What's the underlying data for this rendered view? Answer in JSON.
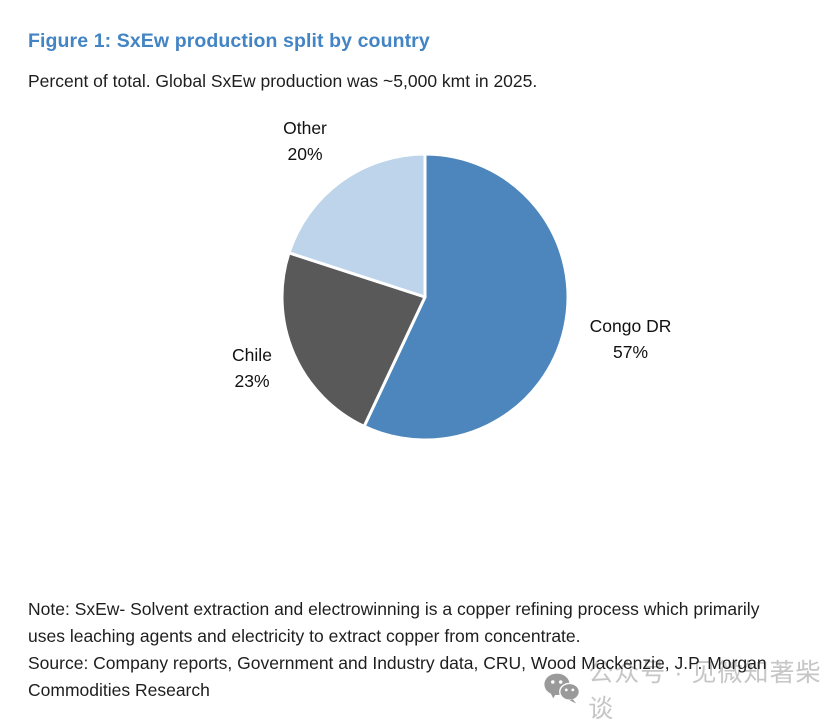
{
  "figure": {
    "title": "Figure 1: SxEw production split by country",
    "subtitle": "Percent of total. Global SxEw production was ~5,000 kmt in 2025."
  },
  "chart_data": {
    "type": "pie",
    "title": "Figure 1: SxEw production split by country",
    "subtitle": "Percent of total. Global SxEw production was ~5,000 kmt in 2025.",
    "unit": "percent of total",
    "start_angle_deg": 0,
    "direction": "clockwise",
    "total": 100,
    "slices": [
      {
        "label": "Congo DR",
        "value": 57,
        "pct_label": "57%",
        "color": "#4D86BC"
      },
      {
        "label": "Chile",
        "value": 23,
        "pct_label": "23%",
        "color": "#595959"
      },
      {
        "label": "Other",
        "value": 20,
        "pct_label": "20%",
        "color": "#BDD4EA"
      }
    ],
    "slice_border_color": "#FFFFFF",
    "legend": "none",
    "labels_position": "outside"
  },
  "footer": {
    "note_lines": [
      "Note: SxEw- Solvent extraction and electrowinning is a copper refining process which primarily",
      "uses leaching agents and electricity to extract copper from concentrate."
    ],
    "source_lines": [
      "Source: Company reports, Government and Industry data, CRU, Wood Mackenzie, J.P. Morgan",
      "Commodities Research"
    ]
  },
  "watermark": {
    "icon": "wechat-icon",
    "text": "公众号 · 见微知著柴谈"
  },
  "colors": {
    "title_blue": "#4384C4",
    "body_text": "#1E1E1E",
    "watermark_gray": "#C6C6C6",
    "watermark_icon_gray": "#9A9A9A"
  }
}
